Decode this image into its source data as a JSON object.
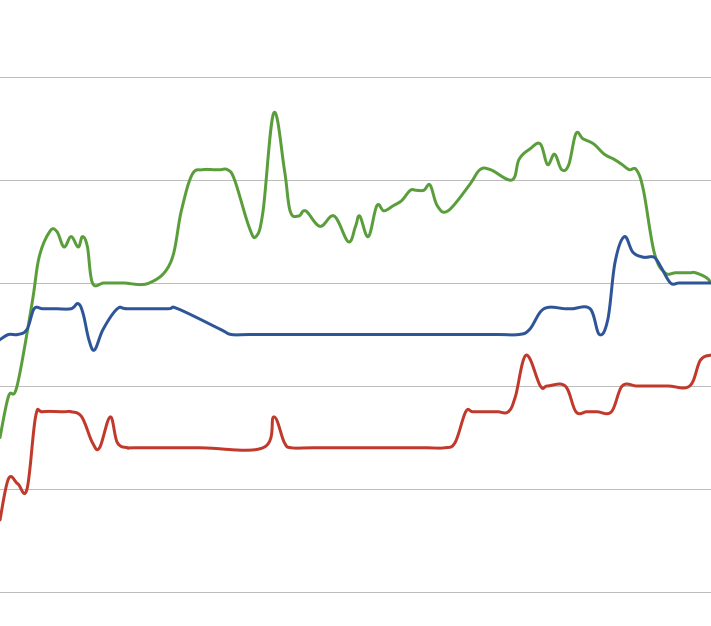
{
  "chart_data": {
    "type": "line",
    "title": "",
    "xlabel": "",
    "ylabel": "",
    "grid": true,
    "legend": "none",
    "x_range": [
      0,
      100
    ],
    "y_range": [
      0,
      5
    ],
    "gridlines_y": [
      0,
      1,
      2,
      3,
      4,
      5
    ],
    "colors": {
      "grid": "#bdbdbd",
      "background": "#ffffff"
    },
    "series": [
      {
        "color": "#5a9e3b",
        "x": [
          0,
          1.2,
          2.4,
          4.5,
          5.5,
          7,
          8,
          9,
          10,
          11,
          11.6,
          12.3,
          13,
          14.6,
          16.5,
          17.5,
          21,
          24,
          25.5,
          27,
          28.5,
          30,
          31,
          32,
          33,
          35,
          36,
          37,
          38.5,
          40,
          40.8,
          42,
          43,
          45,
          47,
          49,
          50,
          50.6,
          51.8,
          53,
          54,
          55.3,
          56.5,
          57.7,
          58.5,
          59.6,
          60.5,
          61.5,
          63,
          66,
          67.5,
          69,
          72,
          73,
          74.5,
          76,
          77,
          78,
          79,
          80,
          81,
          82,
          83.5,
          85,
          86.4,
          87.5,
          88.5,
          89.5,
          90.5,
          92,
          93.5,
          95,
          96.4,
          97.2,
          97.8,
          99.4,
          100
        ],
        "y": [
          1.5,
          1.9,
          2.0,
          2.8,
          3.25,
          3.5,
          3.5,
          3.35,
          3.45,
          3.35,
          3.45,
          3.35,
          3.0,
          3.0,
          3.0,
          3.0,
          3.0,
          3.2,
          3.7,
          4.05,
          4.1,
          4.1,
          4.1,
          4.1,
          4.0,
          3.55,
          3.45,
          3.7,
          4.65,
          4.1,
          3.7,
          3.65,
          3.7,
          3.55,
          3.65,
          3.4,
          3.55,
          3.65,
          3.45,
          3.75,
          3.7,
          3.75,
          3.8,
          3.9,
          3.9,
          3.9,
          3.95,
          3.75,
          3.7,
          3.95,
          4.1,
          4.1,
          4.0,
          4.2,
          4.3,
          4.35,
          4.15,
          4.25,
          4.1,
          4.15,
          4.45,
          4.4,
          4.35,
          4.25,
          4.2,
          4.15,
          4.1,
          4.1,
          3.9,
          3.3,
          3.1,
          3.1,
          3.1,
          3.1,
          3.1,
          3.05,
          3.0
        ]
      },
      {
        "color": "#2e5597",
        "x": [
          0,
          1.2,
          2.5,
          3.8,
          4.8,
          6,
          8,
          10,
          11,
          11.7,
          12.5,
          13.3,
          14.5,
          16.5,
          18,
          23.5,
          25,
          31,
          32.5,
          35,
          40,
          45,
          50,
          55,
          60,
          65,
          70,
          73,
          74.5,
          76.5,
          79.5,
          80.5,
          83,
          84.3,
          85.5,
          86.5,
          87.8,
          89,
          90.5,
          92,
          93,
          94.3,
          95.5,
          97,
          98.5,
          100
        ],
        "y": [
          2.45,
          2.5,
          2.5,
          2.55,
          2.75,
          2.75,
          2.75,
          2.75,
          2.8,
          2.7,
          2.45,
          2.35,
          2.55,
          2.75,
          2.75,
          2.75,
          2.75,
          2.55,
          2.5,
          2.5,
          2.5,
          2.5,
          2.5,
          2.5,
          2.5,
          2.5,
          2.5,
          2.5,
          2.55,
          2.75,
          2.75,
          2.75,
          2.75,
          2.5,
          2.65,
          3.2,
          3.45,
          3.3,
          3.25,
          3.25,
          3.15,
          3.0,
          3.0,
          3.0,
          3.0,
          3.0
        ]
      },
      {
        "color": "#c0392b",
        "x": [
          0,
          1.2,
          2.5,
          3.8,
          5,
          6,
          9,
          10,
          11.5,
          13,
          14,
          15.5,
          16.5,
          18,
          19,
          28,
          37,
          38.5,
          40,
          41,
          44,
          50,
          55,
          60,
          62.5,
          64,
          65.5,
          66.5,
          68.5,
          70,
          71.5,
          72.5,
          74,
          76,
          77,
          79.5,
          81,
          82.5,
          84,
          86,
          87.5,
          89.5,
          91,
          94,
          97,
          98.5,
          100
        ],
        "y": [
          0.7,
          1.1,
          1.05,
          1.0,
          1.7,
          1.75,
          1.75,
          1.75,
          1.7,
          1.45,
          1.4,
          1.7,
          1.45,
          1.4,
          1.4,
          1.4,
          1.4,
          1.7,
          1.45,
          1.4,
          1.4,
          1.4,
          1.4,
          1.4,
          1.4,
          1.45,
          1.75,
          1.75,
          1.75,
          1.75,
          1.75,
          1.9,
          2.3,
          2.0,
          2.0,
          2.0,
          1.75,
          1.75,
          1.75,
          1.75,
          2.0,
          2.0,
          2.0,
          2.0,
          2.0,
          2.25,
          2.3
        ]
      }
    ]
  }
}
